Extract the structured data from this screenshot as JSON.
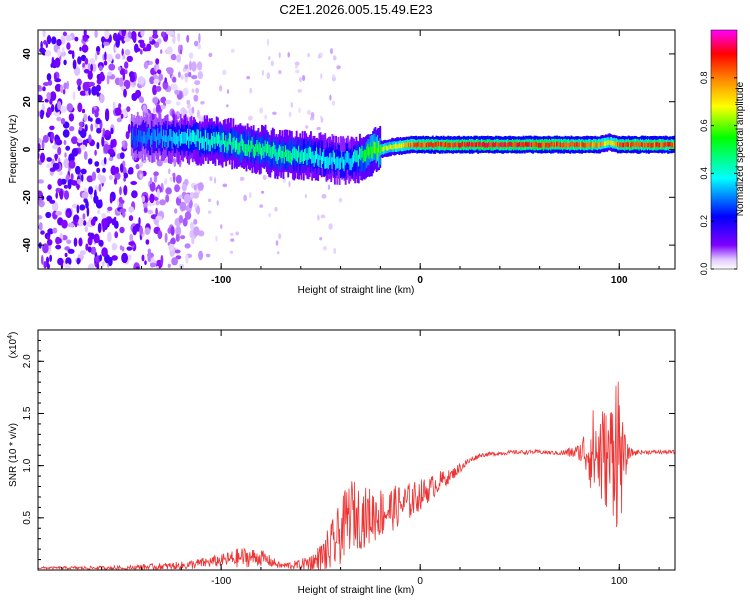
{
  "title": "C2E1.2026.005.15.49.E23",
  "chart_data": [
    {
      "type": "heatmap",
      "title": "C2E1.2026.005.15.49.E23",
      "xlabel": "Height of straight line (km)",
      "ylabel": "Frequency (Hz)",
      "xlim": [
        -192,
        128
      ],
      "ylim": [
        -50,
        50
      ],
      "xticks": [
        -100,
        0,
        100
      ],
      "xtick_labels": [
        "-100",
        "0",
        "100"
      ],
      "yticks": [
        -40,
        -20,
        0,
        20,
        40
      ],
      "ytick_labels": [
        "-40",
        "-20",
        "0",
        "20",
        "40"
      ],
      "colorbar": {
        "label": "Normalized spectral amplitude",
        "range": [
          0,
          1
        ],
        "ticks": [
          0.0,
          0.2,
          0.4,
          0.6,
          0.8
        ],
        "tick_labels": [
          "0.0",
          "0.2",
          "0.4",
          "0.6",
          "0.8"
        ],
        "colors": [
          "#ffffff",
          "#7e00ff",
          "#0000ff",
          "#00ffff",
          "#00ff00",
          "#ffff00",
          "#ff8000",
          "#ff0000",
          "#ff00ff"
        ]
      },
      "ridge": {
        "x": [
          -145,
          -130,
          -110,
          -90,
          -70,
          -55,
          -45,
          -35,
          -25,
          -15,
          -5,
          0,
          20,
          40,
          60,
          80,
          90,
          95,
          100,
          128
        ],
        "frequency_hz": [
          5,
          5,
          4,
          2,
          -2,
          -3,
          -4,
          -5,
          -1,
          1,
          2,
          2,
          2,
          2,
          2,
          2,
          2,
          3,
          2,
          2
        ],
        "amplitude": [
          0.3,
          0.35,
          0.45,
          0.5,
          0.5,
          0.45,
          0.4,
          0.4,
          0.6,
          0.7,
          0.85,
          0.9,
          0.95,
          0.95,
          0.95,
          0.9,
          0.85,
          0.7,
          0.9,
          0.9
        ]
      },
      "noise_region_x": [
        -192,
        -120
      ]
    },
    {
      "type": "line",
      "xlabel": "Height of straight line (km)",
      "ylabel": "SNR (10 * v/v)",
      "y_multiplier_label": "(x10",
      "y_multiplier_exp": "4",
      "xlim": [
        -192,
        128
      ],
      "ylim": [
        0,
        2.3
      ],
      "xticks": [
        -100,
        0,
        100
      ],
      "xtick_labels": [
        "-100",
        "0",
        "100"
      ],
      "yticks": [
        0.5,
        1.0,
        1.5,
        2.0
      ],
      "ytick_labels": [
        "0.5",
        "1.0",
        "1.5",
        "2.0"
      ],
      "color": "#ee3333",
      "series": [
        {
          "name": "SNR",
          "x": [
            -192,
            -150,
            -120,
            -100,
            -90,
            -80,
            -70,
            -60,
            -50,
            -45,
            -40,
            -35,
            -30,
            -25,
            -20,
            -15,
            -10,
            -5,
            0,
            5,
            10,
            15,
            20,
            25,
            30,
            40,
            50,
            60,
            70,
            80,
            85,
            90,
            95,
            98,
            100,
            102,
            105,
            110,
            128
          ],
          "y": [
            0.02,
            0.02,
            0.04,
            0.09,
            0.12,
            0.12,
            0.04,
            0.05,
            0.1,
            0.2,
            0.35,
            0.55,
            0.5,
            0.52,
            0.55,
            0.58,
            0.62,
            0.66,
            0.72,
            0.78,
            0.85,
            0.9,
            0.98,
            1.05,
            1.1,
            1.12,
            1.13,
            1.13,
            1.12,
            1.13,
            1.15,
            1.1,
            1.05,
            1.3,
            1.1,
            1.05,
            1.12,
            1.13,
            1.13
          ],
          "noise": [
            0.01,
            0.02,
            0.04,
            0.06,
            0.1,
            0.08,
            0.03,
            0.05,
            0.15,
            0.25,
            0.3,
            0.35,
            0.3,
            0.28,
            0.25,
            0.22,
            0.2,
            0.18,
            0.15,
            0.12,
            0.1,
            0.06,
            0.05,
            0.03,
            0.02,
            0.02,
            0.02,
            0.02,
            0.02,
            0.08,
            0.35,
            0.55,
            0.45,
            0.85,
            0.9,
            0.3,
            0.05,
            0.02,
            0.02
          ]
        }
      ]
    }
  ]
}
